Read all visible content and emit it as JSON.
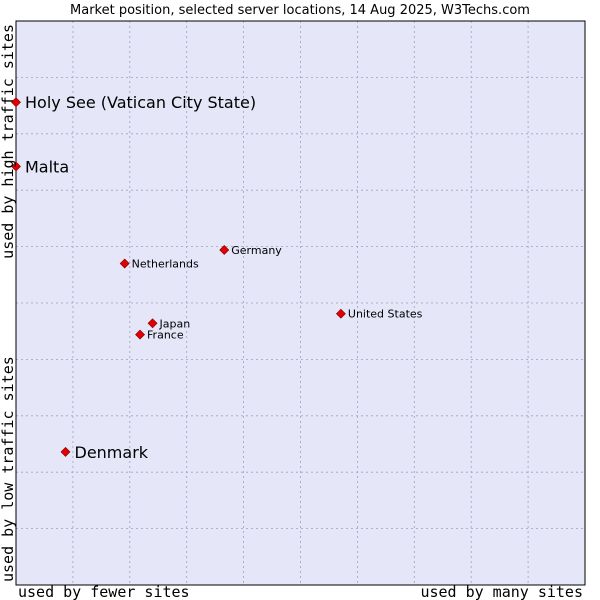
{
  "chart_data": {
    "type": "scatter",
    "title": "Market position, selected server locations, 14 Aug 2025, W3Techs.com",
    "xlabel_left": "used by fewer sites",
    "xlabel_right": "used by many sites",
    "ylabel_bottom": "used by low traffic sites",
    "ylabel_top": "used by high traffic sites",
    "xlim": [
      0,
      100
    ],
    "ylim": [
      0,
      100
    ],
    "grid": true,
    "colors": {
      "plot_bg": "#e5e6f8",
      "grid": "#a0a0c0",
      "marker": "#e00000",
      "border": "#000000"
    },
    "points": [
      {
        "label": "Holy See (Vatican City State)",
        "x": 0.0,
        "y": 85.6,
        "highlight": true
      },
      {
        "label": "Malta",
        "x": 0.0,
        "y": 74.2,
        "highlight": true
      },
      {
        "label": "Germany",
        "x": 36.6,
        "y": 59.4,
        "highlight": false
      },
      {
        "label": "Netherlands",
        "x": 19.1,
        "y": 57.0,
        "highlight": false
      },
      {
        "label": "United States",
        "x": 57.1,
        "y": 48.1,
        "highlight": false
      },
      {
        "label": "Japan",
        "x": 24.0,
        "y": 46.4,
        "highlight": false
      },
      {
        "label": "France",
        "x": 21.8,
        "y": 44.4,
        "highlight": false
      },
      {
        "label": "Denmark",
        "x": 8.7,
        "y": 23.6,
        "highlight": true
      }
    ]
  }
}
